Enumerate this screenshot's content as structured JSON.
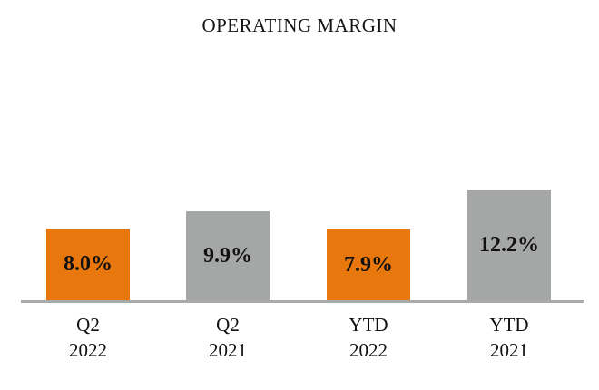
{
  "title": "OPERATING MARGIN",
  "colors": {
    "orange": "#e8780d",
    "gray": "#a5a6a6",
    "axis_line": "#a9abab",
    "label_text": "#111111"
  },
  "chart_data": {
    "type": "bar",
    "title": "OPERATING MARGIN",
    "categories": [
      {
        "period": "Q2",
        "year": "2022"
      },
      {
        "period": "Q2",
        "year": "2021"
      },
      {
        "period": "YTD",
        "year": "2022"
      },
      {
        "period": "YTD",
        "year": "2021"
      }
    ],
    "values": [
      8.0,
      9.9,
      7.9,
      12.2
    ],
    "labels": [
      "8.0%",
      "9.9%",
      "7.9%",
      "12.2%"
    ],
    "bar_colors": [
      "orange",
      "gray",
      "orange",
      "gray"
    ],
    "xlabel": "",
    "ylabel": "",
    "ylim": [
      0,
      13.5
    ],
    "grid": false,
    "legend": "none",
    "value_label_position": "inside-center"
  }
}
